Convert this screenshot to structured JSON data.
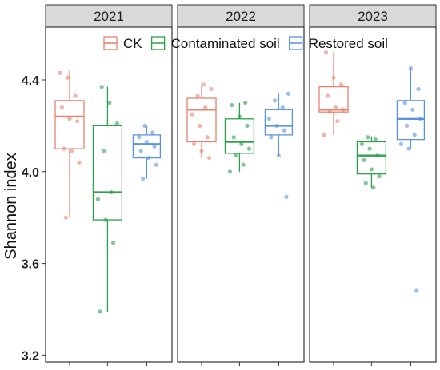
{
  "chart_data": {
    "type": "box",
    "ylabel": "Shannon index",
    "ylim": [
      3.17,
      4.63
    ],
    "yticks": [
      3.2,
      3.6,
      4.0,
      4.4
    ],
    "yticklabels": [
      "3.2",
      "3.6",
      "4.0",
      "4.4"
    ],
    "facets": [
      "2021",
      "2022",
      "2023"
    ],
    "legend": {
      "position": "top-right"
    },
    "grid": false,
    "series": [
      {
        "name": "CK",
        "color": "#e8836f"
      },
      {
        "name": "Contaminated soil",
        "color": "#2ca04c"
      },
      {
        "name": "Restored soil",
        "color": "#5b93e0"
      }
    ],
    "boxes": [
      {
        "facet": "2021",
        "series": "CK",
        "min": 3.8,
        "q1": 4.1,
        "median": 4.24,
        "q3": 4.31,
        "max": 4.44,
        "points": [
          4.43,
          4.41,
          4.33,
          4.28,
          4.23,
          4.22,
          4.1,
          4.09,
          4.04,
          3.8
        ]
      },
      {
        "facet": "2021",
        "series": "Contaminated soil",
        "min": 3.39,
        "q1": 3.79,
        "median": 3.91,
        "q3": 4.2,
        "max": 4.37,
        "points": [
          4.37,
          4.3,
          4.21,
          4.09,
          3.91,
          3.88,
          3.79,
          3.69,
          3.39
        ]
      },
      {
        "facet": "2021",
        "series": "Restored soil",
        "min": 3.97,
        "q1": 4.06,
        "median": 4.12,
        "q3": 4.16,
        "max": 4.2,
        "points": [
          4.2,
          4.17,
          4.15,
          4.13,
          4.11,
          4.09,
          4.06,
          4.03,
          3.97
        ]
      },
      {
        "facet": "2022",
        "series": "CK",
        "min": 4.06,
        "q1": 4.13,
        "median": 4.27,
        "q3": 4.32,
        "max": 4.38,
        "points": [
          4.38,
          4.36,
          4.33,
          4.28,
          4.25,
          4.2,
          4.15,
          4.12,
          4.09,
          4.06
        ]
      },
      {
        "facet": "2022",
        "series": "Contaminated soil",
        "min": 4.0,
        "q1": 4.08,
        "median": 4.13,
        "q3": 4.23,
        "max": 4.3,
        "points": [
          4.3,
          4.29,
          4.24,
          4.2,
          4.15,
          4.12,
          4.1,
          4.07,
          4.03,
          4.0
        ]
      },
      {
        "facet": "2022",
        "series": "Restored soil",
        "min": 4.07,
        "q1": 4.16,
        "median": 4.2,
        "q3": 4.27,
        "max": 4.34,
        "points": [
          4.34,
          4.31,
          4.28,
          4.23,
          4.2,
          4.18,
          4.15,
          4.07,
          3.89
        ]
      },
      {
        "facet": "2023",
        "series": "CK",
        "min": 4.16,
        "q1": 4.26,
        "median": 4.27,
        "q3": 4.37,
        "max": 4.52,
        "points": [
          4.52,
          4.41,
          4.38,
          4.33,
          4.28,
          4.27,
          4.26,
          4.22,
          4.16
        ]
      },
      {
        "facet": "2023",
        "series": "Contaminated soil",
        "min": 3.93,
        "q1": 3.99,
        "median": 4.07,
        "q3": 4.13,
        "max": 4.15,
        "points": [
          4.15,
          4.14,
          4.12,
          4.1,
          4.07,
          4.05,
          4.01,
          3.98,
          3.95,
          3.93
        ]
      },
      {
        "facet": "2023",
        "series": "Restored soil",
        "min": 4.1,
        "q1": 4.14,
        "median": 4.23,
        "q3": 4.31,
        "max": 4.45,
        "points": [
          4.45,
          4.36,
          4.3,
          4.27,
          4.23,
          4.2,
          4.16,
          4.12,
          4.1,
          3.48
        ]
      }
    ]
  }
}
